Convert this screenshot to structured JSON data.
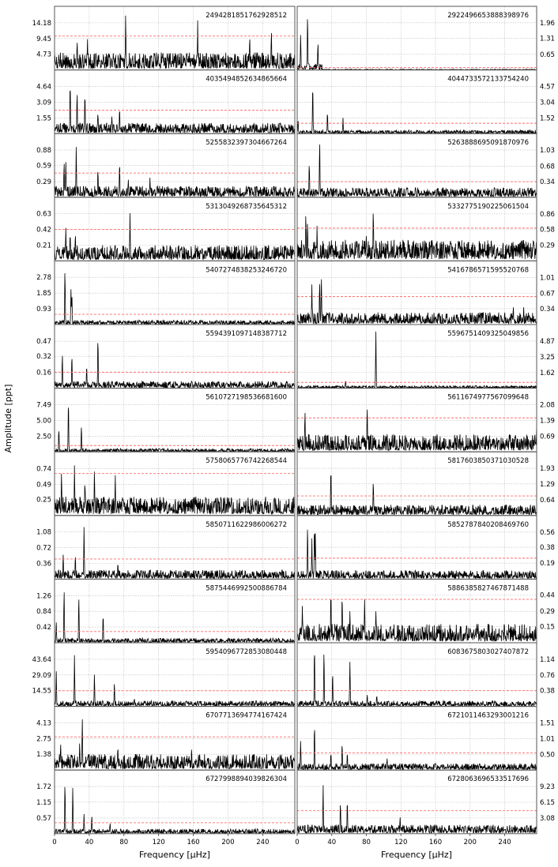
{
  "chart_data": {
    "type": "line",
    "xlabel": "Frequency [μHz]",
    "ylabel": "Amplitude [ppt]",
    "xlim": [
      0,
      277
    ],
    "xticks": [
      0,
      40,
      80,
      120,
      160,
      200,
      240
    ],
    "grid": true,
    "colors": {
      "spectrum": "#000000",
      "threshold": "#ff6b6b",
      "grid": "#bbbbbb"
    },
    "panels": [
      {
        "id": "2494281851762928512",
        "column": "left",
        "yticks": [
          "4.73",
          "9.45",
          "14.18"
        ],
        "ymax": 18.9,
        "threshold": 10.2,
        "noise": 3.0,
        "peaks": [
          [
            82,
            17.5
          ],
          [
            165,
            15.5
          ],
          [
            225,
            10.5
          ],
          [
            250,
            12.5
          ],
          [
            38,
            10
          ],
          [
            26,
            9
          ]
        ]
      },
      {
        "id": "2922496653888398976",
        "column": "right",
        "yticks": [
          "0.65",
          "1.31",
          "1.96"
        ],
        "ymax": 2.61,
        "threshold": 0.1,
        "noise": 0.02,
        "lownoise": 0.15,
        "peaks": [
          [
            4,
            1.5
          ],
          [
            12,
            2.4
          ],
          [
            24,
            1.2
          ]
        ]
      },
      {
        "id": "4035494852634865664",
        "column": "left",
        "yticks": [
          "1.55",
          "3.09",
          "4.64"
        ],
        "ymax": 6.19,
        "threshold": 2.3,
        "noise": 0.6,
        "peaks": [
          [
            18,
            5.2
          ],
          [
            26,
            4.3
          ],
          [
            35,
            4.3
          ],
          [
            50,
            2.1
          ],
          [
            66,
            1.8
          ],
          [
            75,
            2.7
          ]
        ]
      },
      {
        "id": "4044733572133754240",
        "column": "right",
        "yticks": [
          "1.52",
          "3.04",
          "4.57"
        ],
        "ymax": 6.09,
        "threshold": 1.0,
        "noise": 0.2,
        "peaks": [
          [
            1,
            1.5
          ],
          [
            18,
            5.0
          ],
          [
            35,
            2.2
          ],
          [
            53,
            1.6
          ]
        ]
      },
      {
        "id": "5255832397304667264",
        "column": "left",
        "yticks": [
          "0.29",
          "0.59",
          "0.88"
        ],
        "ymax": 1.17,
        "threshold": 0.45,
        "noise": 0.12,
        "peaks": [
          [
            11,
            0.7
          ],
          [
            13,
            0.68
          ],
          [
            25,
            0.98
          ],
          [
            50,
            0.55
          ],
          [
            75,
            0.68
          ],
          [
            85,
            0.35
          ],
          [
            110,
            0.38
          ]
        ]
      },
      {
        "id": "5263888695091870976",
        "column": "right",
        "yticks": [
          "0.34",
          "0.68",
          "1.03"
        ],
        "ymax": 1.37,
        "threshold": 0.34,
        "noise": 0.12,
        "peaks": [
          [
            14,
            0.8
          ],
          [
            26,
            1.25
          ]
        ]
      },
      {
        "id": "5313049268735645312",
        "column": "left",
        "yticks": [
          "0.21",
          "0.42",
          "0.63"
        ],
        "ymax": 0.84,
        "threshold": 0.42,
        "noise": 0.12,
        "peaks": [
          [
            13,
            0.49
          ],
          [
            18,
            0.4
          ],
          [
            24,
            0.4
          ],
          [
            87,
            0.68
          ]
        ]
      },
      {
        "id": "5332775190225061504",
        "column": "right",
        "yticks": [
          "0.29",
          "0.58",
          "0.86"
        ],
        "ymax": 1.15,
        "threshold": 0.6,
        "noise": 0.22,
        "peaks": [
          [
            10,
            0.95
          ],
          [
            12,
            0.75
          ],
          [
            23,
            0.7
          ],
          [
            80,
            0.5
          ],
          [
            88,
            0.98
          ]
        ]
      },
      {
        "id": "5407274838253246720",
        "column": "left",
        "yticks": [
          "0.93",
          "1.85",
          "2.78"
        ],
        "ymax": 3.7,
        "threshold": 0.6,
        "noise": 0.15,
        "peaks": [
          [
            12,
            3.4
          ],
          [
            19,
            2.2
          ],
          [
            20,
            2.0
          ]
        ]
      },
      {
        "id": "5416786571595520768",
        "column": "right",
        "yticks": [
          "0.34",
          "0.67",
          "1.01"
        ],
        "ymax": 1.35,
        "threshold": 0.6,
        "noise": 0.15,
        "peaks": [
          [
            17,
            0.95
          ],
          [
            26,
            1.0
          ],
          [
            28,
            1.05
          ],
          [
            250,
            0.42
          ],
          [
            262,
            0.38
          ]
        ]
      },
      {
        "id": "5594391097148387712",
        "column": "left",
        "yticks": [
          "0.16",
          "0.32",
          "0.47"
        ],
        "ymax": 0.63,
        "threshold": 0.16,
        "noise": 0.04,
        "peaks": [
          [
            9,
            0.37
          ],
          [
            20,
            0.36
          ],
          [
            37,
            0.25
          ],
          [
            50,
            0.55
          ]
        ]
      },
      {
        "id": "5596751409325049856",
        "column": "right",
        "yticks": [
          "1.62",
          "3.25",
          "4.87"
        ],
        "ymax": 6.5,
        "threshold": 0.6,
        "noise": 0.15,
        "peaks": [
          [
            56,
            0.9
          ],
          [
            91,
            6.1
          ]
        ]
      },
      {
        "id": "5610727198536681600",
        "column": "left",
        "yticks": [
          "2.50",
          "5.00",
          "7.49"
        ],
        "ymax": 10.0,
        "threshold": 1.0,
        "noise": 0.3,
        "peaks": [
          [
            5,
            4
          ],
          [
            16,
            8.4
          ],
          [
            31,
            4.5
          ]
        ]
      },
      {
        "id": "5611674977567099648",
        "column": "right",
        "yticks": [
          "0.69",
          "1.39",
          "2.08"
        ],
        "ymax": 2.78,
        "threshold": 1.5,
        "noise": 0.45,
        "peaks": [
          [
            9,
            2.0
          ],
          [
            81,
            2.1
          ],
          [
            277,
            1.3
          ]
        ]
      },
      {
        "id": "5758065776742268544",
        "column": "left",
        "yticks": [
          "0.25",
          "0.49",
          "0.74"
        ],
        "ymax": 0.99,
        "threshold": 0.66,
        "noise": 0.17,
        "peaks": [
          [
            8,
            0.75
          ],
          [
            23,
            0.82
          ],
          [
            35,
            0.58
          ],
          [
            46,
            0.78
          ],
          [
            70,
            0.65
          ]
        ]
      },
      {
        "id": "5817603850371030528",
        "column": "right",
        "yticks": [
          "0.64",
          "1.29",
          "1.93"
        ],
        "ymax": 2.57,
        "threshold": 0.8,
        "noise": 0.25,
        "peaks": [
          [
            39,
            2.05
          ],
          [
            88,
            1.6
          ]
        ]
      },
      {
        "id": "5850711622986006272",
        "column": "left",
        "yticks": [
          "0.36",
          "0.72",
          "1.08"
        ],
        "ymax": 1.44,
        "threshold": 0.46,
        "noise": 0.12,
        "peaks": [
          [
            10,
            0.6
          ],
          [
            24,
            0.6
          ],
          [
            34,
            1.24
          ],
          [
            73,
            0.39
          ]
        ]
      },
      {
        "id": "5852787840208469760",
        "column": "right",
        "yticks": [
          "0.19",
          "0.38",
          "0.56"
        ],
        "ymax": 0.75,
        "threshold": 0.25,
        "noise": 0.06,
        "peaks": [
          [
            12,
            0.65
          ],
          [
            17,
            0.5
          ],
          [
            20,
            0.65
          ],
          [
            21,
            0.6
          ]
        ]
      },
      {
        "id": "5875446992500886784",
        "column": "left",
        "yticks": [
          "0.42",
          "0.84",
          "1.26"
        ],
        "ymax": 1.68,
        "threshold": 0.3,
        "noise": 0.07,
        "peaks": [
          [
            2,
            0.55
          ],
          [
            11,
            1.5
          ],
          [
            28,
            1.32
          ],
          [
            56,
            0.8
          ]
        ]
      },
      {
        "id": "5886385827467871488",
        "column": "right",
        "yticks": [
          "0.15",
          "0.29",
          "0.44"
        ],
        "ymax": 0.58,
        "threshold": 0.4,
        "noise": 0.1,
        "peaks": [
          [
            6,
            0.35
          ],
          [
            39,
            0.5
          ],
          [
            52,
            0.47
          ],
          [
            61,
            0.3
          ],
          [
            78,
            0.45
          ],
          [
            91,
            0.3
          ]
        ]
      },
      {
        "id": "5954096772853080448",
        "column": "left",
        "yticks": [
          "14.55",
          "29.09",
          "43.64"
        ],
        "ymax": 58.2,
        "threshold": 14.5,
        "noise": 3.0,
        "peaks": [
          [
            2,
            33
          ],
          [
            23,
            49
          ],
          [
            46,
            31
          ],
          [
            69,
            23
          ],
          [
            92,
            8
          ]
        ]
      },
      {
        "id": "6083675803027407872",
        "column": "right",
        "yticks": [
          "0.38",
          "0.76",
          "1.14"
        ],
        "ymax": 1.52,
        "threshold": 0.38,
        "noise": 0.08,
        "peaks": [
          [
            20,
            1.5
          ],
          [
            31,
            1.4
          ],
          [
            41,
            0.9
          ],
          [
            61,
            1.15
          ],
          [
            81,
            0.3
          ],
          [
            92,
            0.3
          ]
        ]
      },
      {
        "id": "6707713694774167424",
        "column": "left",
        "yticks": [
          "1.38",
          "2.75",
          "4.13"
        ],
        "ymax": 5.5,
        "threshold": 2.9,
        "noise": 0.8,
        "peaks": [
          [
            7,
            2.5
          ],
          [
            29,
            2.5
          ],
          [
            32,
            4.8
          ],
          [
            73,
            2.2
          ],
          [
            158,
            2.0
          ]
        ]
      },
      {
        "id": "6721011463293001216",
        "column": "right",
        "yticks": [
          "0.50",
          "1.01",
          "1.51"
        ],
        "ymax": 2.02,
        "threshold": 0.55,
        "noise": 0.12,
        "peaks": [
          [
            4,
            1.0
          ],
          [
            20,
            1.55
          ],
          [
            39,
            0.6
          ],
          [
            52,
            0.95
          ],
          [
            58,
            0.6
          ],
          [
            104,
            0.4
          ]
        ]
      },
      {
        "id": "6727998894039826304",
        "column": "left",
        "yticks": [
          "0.57",
          "1.15",
          "1.72"
        ],
        "ymax": 2.29,
        "threshold": 0.4,
        "noise": 0.1,
        "peaks": [
          [
            12,
            1.95
          ],
          [
            21,
            1.75
          ],
          [
            34,
            0.75
          ],
          [
            43,
            0.7
          ],
          [
            64,
            0.4
          ]
        ]
      },
      {
        "id": "6728063696533517696",
        "column": "right",
        "yticks": [
          "3.08",
          "6.15",
          "9.23"
        ],
        "ymax": 12.3,
        "threshold": 4.5,
        "noise": 1.0,
        "peaks": [
          [
            30,
            10.0
          ],
          [
            50,
            6.5
          ],
          [
            58,
            7.0
          ],
          [
            119,
            3.5
          ]
        ]
      }
    ]
  }
}
